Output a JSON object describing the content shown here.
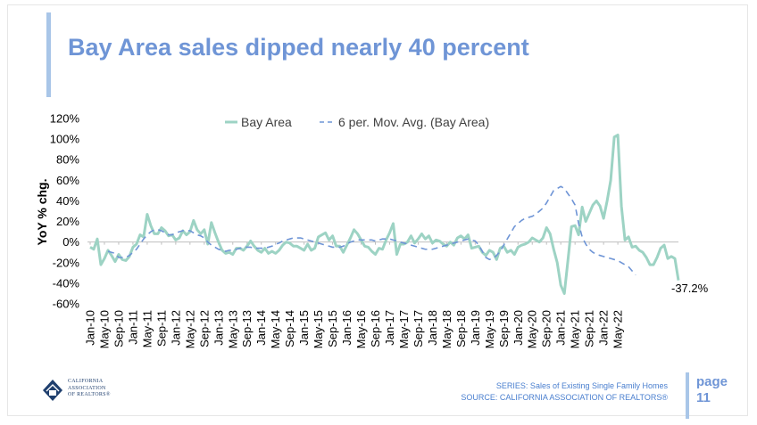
{
  "slide": {
    "title": "Bay Area sales dipped nearly 40 percent",
    "footer_series": "SERIES: Sales of Existing Single Family Homes",
    "footer_source": "SOURCE: CALIFORNIA ASSOCIATION OF REALTORS®",
    "page_word": "page",
    "page_number": "11",
    "logo_lines": [
      "CALIFORNIA",
      "ASSOCIATION",
      "OF REALTORS®"
    ]
  },
  "chart_data": {
    "type": "line",
    "ylabel": "YoY % chg.",
    "ylim": [
      -60,
      120
    ],
    "yticks": [
      -60,
      -40,
      -20,
      0,
      20,
      40,
      60,
      80,
      100,
      120
    ],
    "ytick_labels": [
      "-60%",
      "-40%",
      "-20%",
      "0%",
      "20%",
      "40%",
      "60%",
      "80%",
      "100%",
      "120%"
    ],
    "xtick_labels": [
      "Jan-10",
      "May-10",
      "Sep-10",
      "Jan-11",
      "May-11",
      "Sep-11",
      "Jan-12",
      "May-12",
      "Sep-12",
      "Jan-13",
      "May-13",
      "Sep-13",
      "Jan-14",
      "May-14",
      "Sep-14",
      "Jan-15",
      "May-15",
      "Sep-15",
      "Jan-16",
      "May-16",
      "Sep-16",
      "Jan-17",
      "May-17",
      "Sep-17",
      "Jan-18",
      "May-18",
      "Sep-18",
      "Jan-19",
      "May-19",
      "Sep-19",
      "Jan-20",
      "May-20",
      "Sep-20",
      "Jan-21",
      "May-21",
      "Sep-21",
      "Jan-22",
      "May-22"
    ],
    "legend": [
      "Bay Area",
      "6 per. Mov. Avg. (Bay Area)"
    ],
    "legend_position": "top",
    "grid": false,
    "end_label": "-37.2%",
    "colors": {
      "series": "#9dd3c4",
      "moving_avg": "#6f95d6"
    },
    "series": [
      {
        "name": "Bay Area",
        "x_start": "Jan-10",
        "values": [
          -5,
          -7,
          3,
          -22,
          -16,
          -8,
          -13,
          -19,
          -12,
          -17,
          -18,
          -14,
          -5,
          -2,
          7,
          5,
          27,
          16,
          8,
          8,
          14,
          11,
          6,
          7,
          2,
          4,
          11,
          7,
          10,
          21,
          12,
          8,
          12,
          -2,
          19,
          9,
          0,
          -8,
          -11,
          -10,
          -12,
          -6,
          -6,
          -8,
          -4,
          1,
          -4,
          -8,
          -10,
          -6,
          -11,
          -9,
          -11,
          -8,
          -3,
          0,
          -1,
          -4,
          -4,
          -6,
          -8,
          -2,
          -8,
          -6,
          5,
          7,
          9,
          2,
          6,
          -4,
          -4,
          -10,
          -3,
          4,
          12,
          8,
          2,
          -4,
          -5,
          -9,
          -12,
          -6,
          -7,
          2,
          9,
          18,
          -12,
          -2,
          -2,
          0,
          6,
          -1,
          3,
          8,
          3,
          6,
          -1,
          2,
          1,
          -2,
          -4,
          0,
          -3,
          4,
          6,
          3,
          7,
          -6,
          -5,
          -4,
          -10,
          -13,
          -8,
          -10,
          -17,
          -6,
          -4,
          -10,
          -8,
          -12,
          -5,
          -3,
          -2,
          0,
          4,
          2,
          0,
          4,
          14,
          8,
          -7,
          -20,
          -42,
          -50,
          -18,
          15,
          16,
          7,
          34,
          20,
          28,
          36,
          40,
          35,
          23,
          40,
          60,
          102,
          104,
          35,
          2,
          5,
          -5,
          -4,
          -8,
          -10,
          -15,
          -22,
          -22,
          -15,
          -6,
          -3,
          -16,
          -14,
          -16,
          -37.2
        ]
      },
      {
        "name": "6 per. Mov. Avg. (Bay Area)",
        "x_start": "Jun-10",
        "values": [
          -9,
          -10,
          -11,
          -15,
          -15,
          -15,
          -13,
          -10,
          -7,
          -2,
          3,
          7,
          10,
          12,
          12,
          11,
          9,
          7,
          7,
          9,
          10,
          11,
          11,
          11,
          9,
          7,
          6,
          4,
          0,
          -3,
          -5,
          -7,
          -8,
          -9,
          -8,
          -8,
          -7,
          -6,
          -5,
          -5,
          -5,
          -6,
          -6,
          -6,
          -6,
          -5,
          -4,
          -2,
          -1,
          1,
          2,
          3,
          4,
          4,
          4,
          3,
          2,
          1,
          0,
          -1,
          -2,
          -3,
          -4,
          -5,
          -5,
          -5,
          -4,
          -2,
          0,
          1,
          2,
          2,
          2,
          2,
          2,
          1,
          2,
          3,
          3,
          3,
          2,
          1,
          0,
          -1,
          -2,
          -3,
          -4,
          -5,
          -6,
          -7,
          -7,
          -7,
          -6,
          -5,
          -4,
          -3,
          -2,
          -1,
          0,
          1,
          2,
          3,
          2,
          1,
          -3,
          -9,
          -15,
          -17,
          -16,
          -13,
          -9,
          -3,
          3,
          9,
          15,
          18,
          21,
          23,
          24,
          25,
          27,
          30,
          33,
          38,
          44,
          50,
          52,
          54,
          52,
          47,
          42,
          36,
          18,
          5,
          -2,
          -7,
          -10,
          -12,
          -13,
          -14,
          -15,
          -16,
          -17,
          -18,
          -20,
          -22,
          -24,
          -28,
          -32
        ]
      }
    ]
  }
}
